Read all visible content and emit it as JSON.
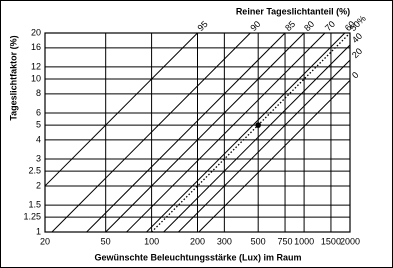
{
  "chart_data": {
    "type": "line",
    "title": "Reiner Tageslichtanteil (%)",
    "x_label": "Gewünschte Beleuchtungsstärke (Lux) im Raum",
    "y_label": "Tageslichtfaktor (%)",
    "log_x": true,
    "log_y": true,
    "grid": true,
    "xlim": [
      20,
      2000
    ],
    "ylim": [
      1,
      20
    ],
    "xticks": [
      20,
      50,
      100,
      200,
      300,
      500,
      750,
      1000,
      1500,
      2000
    ],
    "yticks": [
      1,
      1.25,
      1.5,
      2,
      2.5,
      3,
      4,
      5,
      6,
      8,
      10,
      12,
      16,
      20
    ],
    "series": [
      {
        "name": "95",
        "color": "#000000",
        "x": [
          20,
          200
        ],
        "values": [
          2,
          20
        ]
      },
      {
        "name": "90",
        "color": "#000000",
        "x": [
          22.2,
          444
        ],
        "values": [
          1,
          20
        ]
      },
      {
        "name": "85",
        "color": "#000000",
        "x": [
          37.5,
          750
        ],
        "values": [
          1,
          20
        ]
      },
      {
        "name": "80",
        "color": "#000000",
        "x": [
          50,
          1000
        ],
        "values": [
          1,
          20
        ]
      },
      {
        "name": "70",
        "color": "#000000",
        "x": [
          68.5,
          1370
        ],
        "values": [
          1,
          20
        ]
      },
      {
        "name": "60",
        "color": "#000000",
        "x": [
          92.6,
          1850
        ],
        "values": [
          1,
          20
        ]
      },
      {
        "name": "50%",
        "color": "#000000",
        "dashed": true,
        "x": [
          100,
          2000
        ],
        "values": [
          1,
          20
        ]
      },
      {
        "name": "40",
        "color": "#000000",
        "x": [
          120,
          2000
        ],
        "values": [
          1,
          16.7
        ]
      },
      {
        "name": "20",
        "color": "#000000",
        "x": [
          150,
          2000
        ],
        "values": [
          1,
          13.3
        ]
      },
      {
        "name": "0",
        "color": "#000000",
        "x": [
          204,
          2000
        ],
        "values": [
          1,
          9.8
        ]
      }
    ],
    "point": {
      "x": 500,
      "y": 5,
      "color": "#000000"
    }
  }
}
